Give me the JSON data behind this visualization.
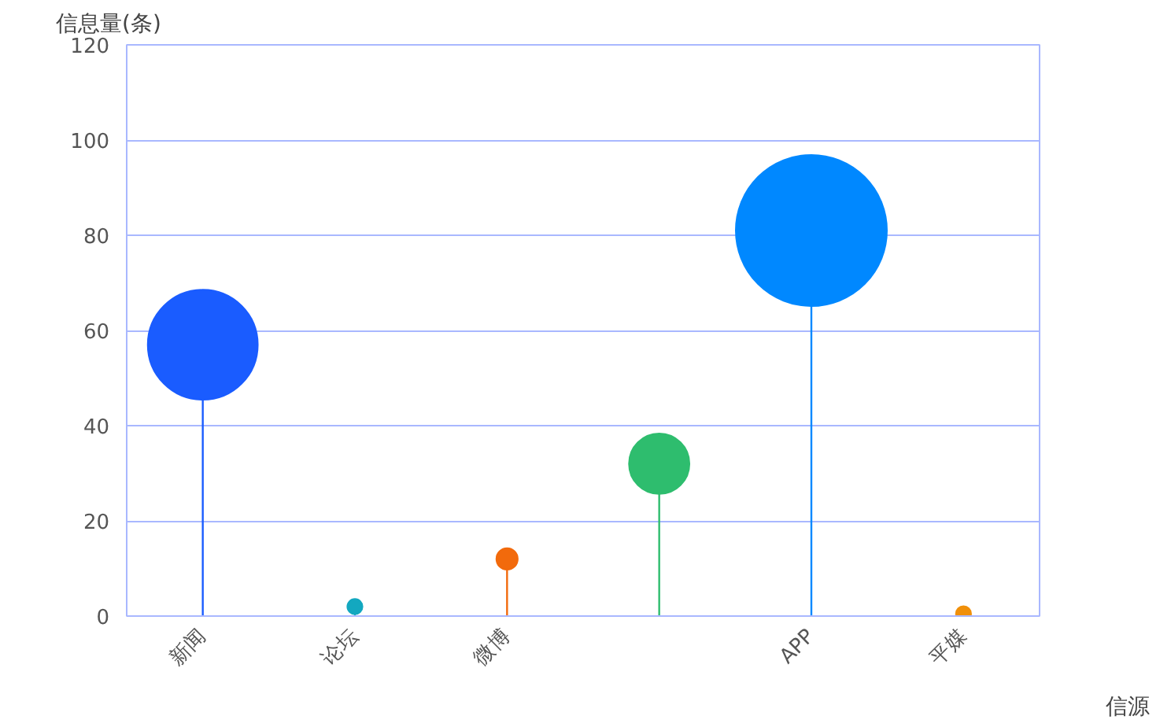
{
  "chart_data": {
    "type": "bubble",
    "xlabel": "信源",
    "ylabel": "信息量(条)",
    "categories": [
      "新闻",
      "论坛",
      "微博",
      null,
      "APP",
      "平媒"
    ],
    "values": [
      57,
      2,
      12,
      32,
      81,
      0.5
    ],
    "sizes": [
      0.53,
      0.01,
      0.02,
      0.16,
      1,
      0.01
    ],
    "colors": [
      "#1a5cff",
      "#13a8c0",
      "#f26a0c",
      "#2ebd6e",
      "#0088ff",
      "#f0900a"
    ],
    "ylim": [
      0,
      120
    ],
    "yticks": [
      0,
      20,
      40,
      60,
      80,
      100,
      120
    ],
    "grid": "y"
  }
}
